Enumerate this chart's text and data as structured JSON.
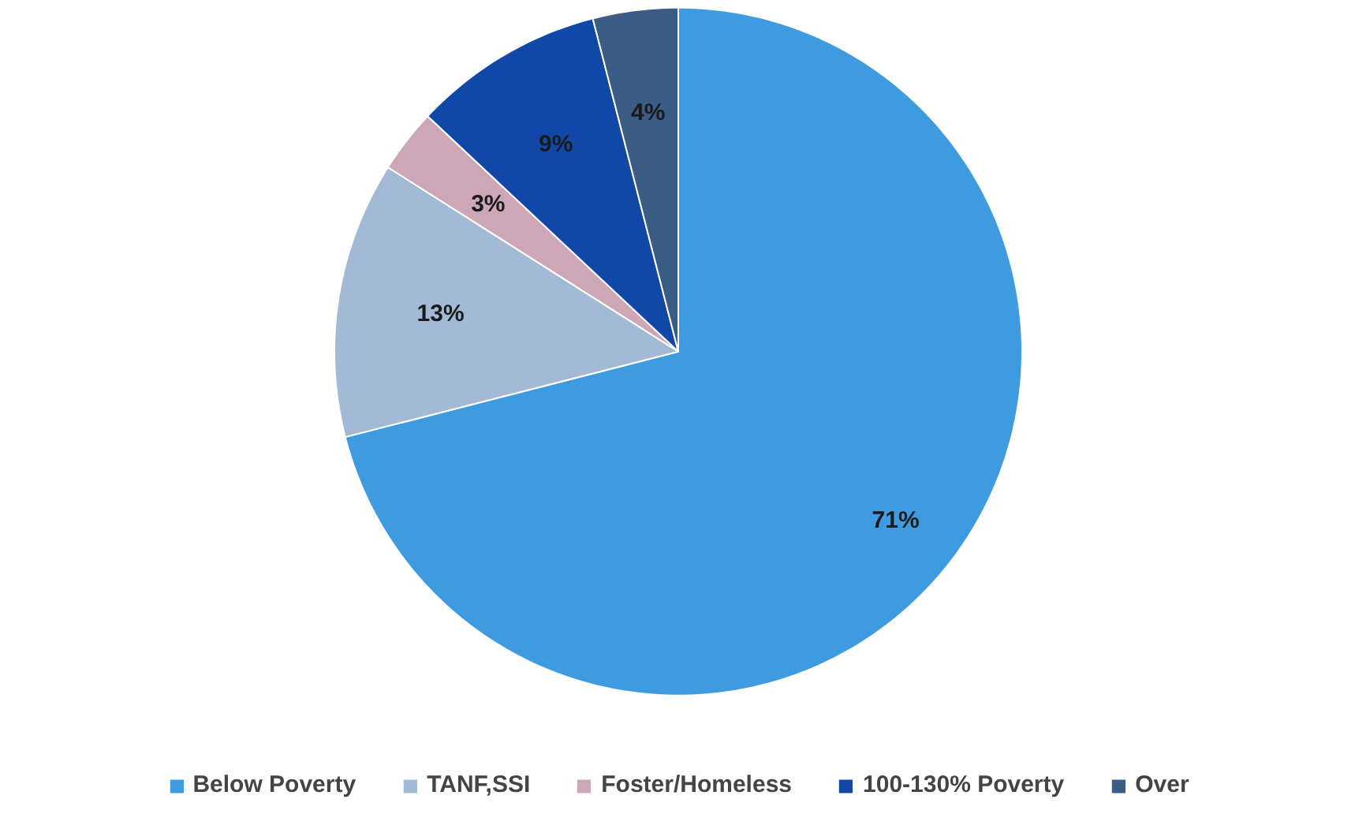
{
  "chart_data": {
    "type": "pie",
    "categories": [
      "Below Poverty",
      "TANF,SSI",
      "Foster/Homeless",
      "100-130% Poverty",
      "Over"
    ],
    "values": [
      71,
      13,
      3,
      9,
      4
    ],
    "colors": [
      "#3f9be0",
      "#a3bad6",
      "#cda6b8",
      "#1148a8",
      "#3b5c84"
    ],
    "value_labels": [
      "71%",
      "13%",
      "3%",
      "9%",
      "4%"
    ],
    "legend": "bottom"
  }
}
